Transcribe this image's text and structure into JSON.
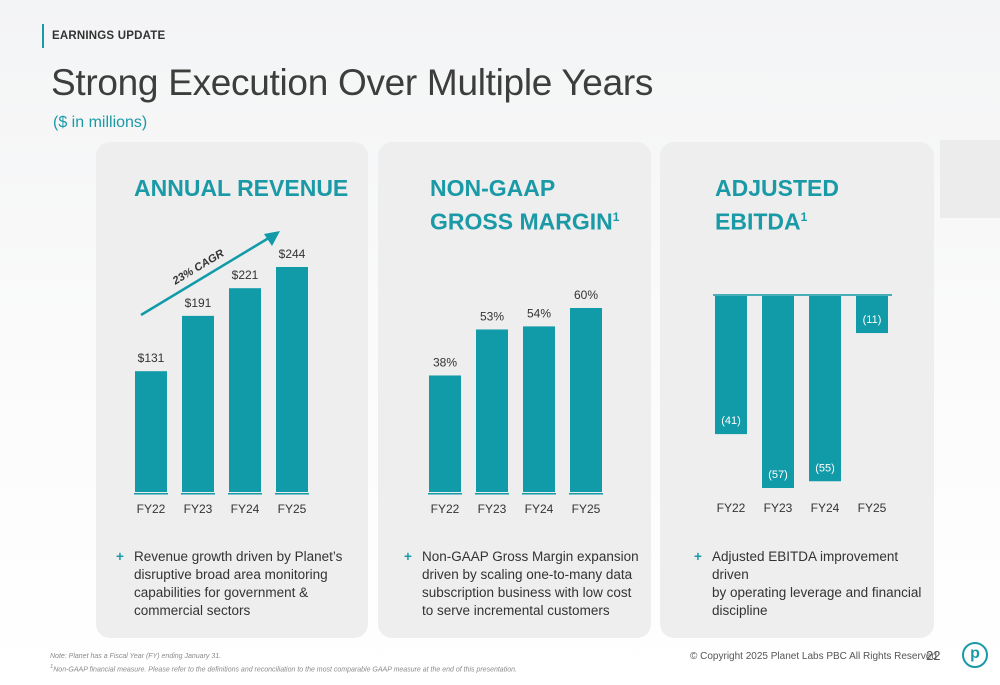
{
  "header": {
    "eyebrow": "EARNINGS UPDATE",
    "title": "Strong Execution Over Multiple Years",
    "subtitle": "($ in millions)"
  },
  "panels": [
    {
      "title_lines": [
        "ANNUAL REVENUE"
      ],
      "superscript": "",
      "bullet": [
        "Revenue growth driven by Planet’s",
        "disruptive broad area monitoring",
        "capabilities for government &",
        "commercial sectors"
      ]
    },
    {
      "title_lines": [
        "NON-GAAP",
        "GROSS MARGIN"
      ],
      "superscript": "1",
      "bullet": [
        "Non-GAAP Gross Margin expansion",
        "driven by scaling one-to-many data",
        "subscription business with low cost",
        "to serve incremental customers"
      ]
    },
    {
      "title_lines": [
        "ADJUSTED EBITDA"
      ],
      "superscript": "1",
      "bullet": [
        "Adjusted EBITDA improvement driven",
        "by operating leverage and financial",
        "discipline"
      ]
    }
  ],
  "chart_data": [
    {
      "type": "bar",
      "title": "ANNUAL REVENUE",
      "categories": [
        "FY22",
        "FY23",
        "FY24",
        "FY25"
      ],
      "values": [
        131,
        191,
        221,
        244
      ],
      "data_labels": [
        "$131",
        "$191",
        "$221",
        "$244"
      ],
      "annotation": "23% CAGR",
      "ylim": [
        0,
        244
      ],
      "grid": false,
      "color": "#119aa8"
    },
    {
      "type": "bar",
      "title": "NON-GAAP GROSS MARGIN",
      "categories": [
        "FY22",
        "FY23",
        "FY24",
        "FY25"
      ],
      "values": [
        38,
        53,
        54,
        60
      ],
      "data_labels": [
        "38%",
        "53%",
        "54%",
        "60%"
      ],
      "ylim": [
        0,
        60
      ],
      "grid": false,
      "color": "#119aa8"
    },
    {
      "type": "bar",
      "title": "ADJUSTED EBITDA",
      "categories": [
        "FY22",
        "FY23",
        "FY24",
        "FY25"
      ],
      "values": [
        -41,
        -57,
        -55,
        -11
      ],
      "data_labels": [
        "(41)",
        "(57)",
        "(55)",
        "(11)"
      ],
      "ylim": [
        -57,
        0
      ],
      "grid": false,
      "color": "#119aa8"
    }
  ],
  "footer": {
    "note": "Note: Planet has a Fiscal Year (FY) ending January 31.",
    "note_marker": "1",
    "note2": "Non-GAAP financial measure. Please refer to the definitions and reconciliation to the most comparable GAAP measure at the end of this presentation.",
    "copyright": "© Copyright 2025 Planet Labs PBC  All Rights Reserved",
    "page": "22",
    "logo": "p"
  },
  "colors": {
    "accent": "#1a9aa6",
    "bar": "#119aa8",
    "panel": "#eeeeee"
  }
}
